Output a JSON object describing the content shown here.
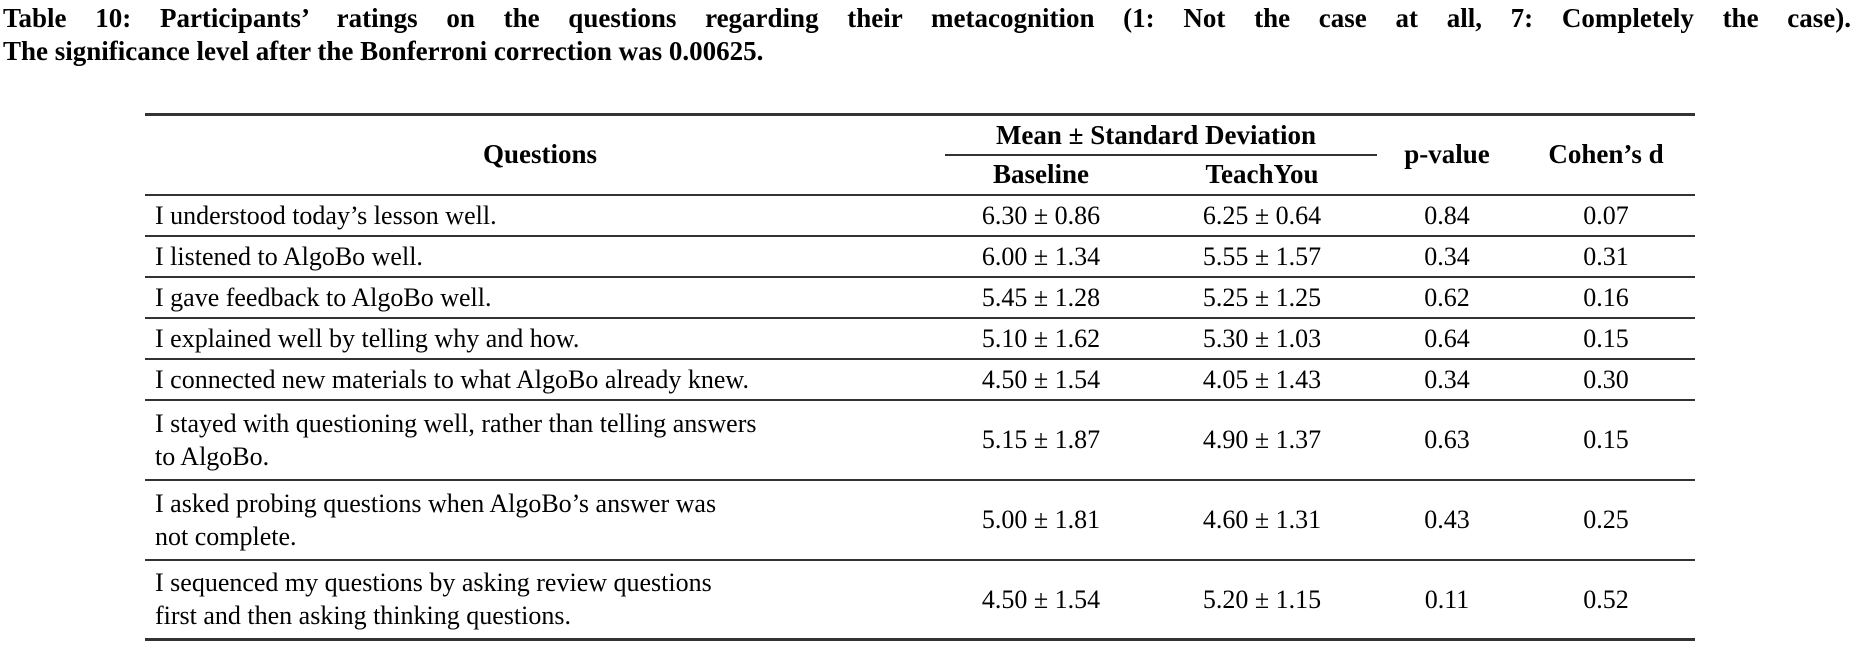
{
  "caption": {
    "line1": "Table 10: Participants’ ratings on the questions regarding their metacognition (1: Not the case at all, 7: Completely the case).",
    "line2": "The significance level after the Bonferroni correction was 0.00625."
  },
  "table": {
    "headers": {
      "questions": "Questions",
      "group": "Mean ± Standard Deviation",
      "baseline": "Baseline",
      "teachyou": "TeachYou",
      "p_value": "p-value",
      "cohens_d": "Cohen’s d"
    },
    "rows": [
      {
        "question": "I understood today’s lesson well.",
        "baseline": "6.30 ± 0.86",
        "teachyou": "6.25 ± 0.64",
        "p_value": "0.84",
        "cohens_d": "0.07"
      },
      {
        "question": "I listened to AlgoBo well.",
        "baseline": "6.00 ± 1.34",
        "teachyou": "5.55 ± 1.57",
        "p_value": "0.34",
        "cohens_d": "0.31"
      },
      {
        "question": "I gave feedback to AlgoBo well.",
        "baseline": "5.45 ± 1.28",
        "teachyou": "5.25 ± 1.25",
        "p_value": "0.62",
        "cohens_d": "0.16"
      },
      {
        "question": "I explained well by telling why and how.",
        "baseline": "5.10 ± 1.62",
        "teachyou": "5.30 ± 1.03",
        "p_value": "0.64",
        "cohens_d": "0.15"
      },
      {
        "question": "I connected new materials to what AlgoBo already knew.",
        "baseline": "4.50 ± 1.54",
        "teachyou": "4.05 ± 1.43",
        "p_value": "0.34",
        "cohens_d": "0.30"
      },
      {
        "question": "I stayed with questioning well, rather than telling answers\nto AlgoBo.",
        "baseline": "5.15 ± 1.87",
        "teachyou": "4.90 ± 1.37",
        "p_value": "0.63",
        "cohens_d": "0.15"
      },
      {
        "question": "I asked probing questions when AlgoBo’s answer was\nnot complete.",
        "baseline": "5.00 ± 1.81",
        "teachyou": "4.60 ± 1.31",
        "p_value": "0.43",
        "cohens_d": "0.25"
      },
      {
        "question": "I sequenced my questions by asking review questions\nfirst and then asking thinking questions.",
        "baseline": "4.50 ± 1.54",
        "teachyou": "5.20 ± 1.15",
        "p_value": "0.11",
        "cohens_d": "0.52"
      }
    ]
  },
  "colors": {
    "text": "#000000",
    "rule": "#333333",
    "background": "#ffffff"
  }
}
